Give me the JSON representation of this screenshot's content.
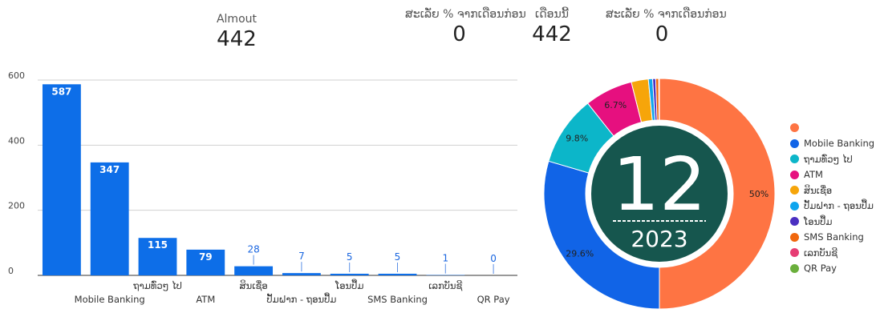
{
  "kpis": [
    {
      "label": "Almout",
      "value": "442"
    },
    {
      "label": "ສະເລັ່ຍ % ຈາກເດືອນກ່ອນ",
      "value": "0"
    },
    {
      "label": "ເດືອນນີ້",
      "value": "442"
    },
    {
      "label": "ສະເລັ່ຍ % ຈາກເດືອນກ່ອນ",
      "value": "0"
    }
  ],
  "chart_data": [
    {
      "type": "bar",
      "categories": [
        "",
        "Mobile Banking",
        "ຖາມທົ່ວໆ ໄປ",
        "ATM",
        "ສິນເຊື່ອ",
        "ປັ້ມຝາກ - ຖອນປຶ້ມ",
        "ໂອນປຶ້ມ",
        "SMS Banking",
        "ເລກບັນຊີ",
        "QR Pay"
      ],
      "values": [
        587,
        347,
        115,
        79,
        28,
        7,
        5,
        5,
        1,
        0
      ],
      "ylim": [
        0,
        600
      ],
      "yticks": [
        0,
        200,
        400,
        600
      ],
      "grid": true,
      "bar_color": "#0d6ee8"
    },
    {
      "type": "pie",
      "donut": true,
      "center_label": "12",
      "center_sublabel": "2023",
      "categories": [
        "",
        "Mobile Banking",
        "ຖາມທົ່ວໆ ໄປ",
        "ATM",
        "ສິນເຊື່ອ",
        "ປັ້ມຝາກ - ຖອນປຶ້ມ",
        "ໂອນປຶ້ມ",
        "SMS Banking",
        "ເລກບັນຊີ",
        "QR Pay"
      ],
      "values": [
        587,
        347,
        115,
        79,
        28,
        7,
        5,
        5,
        1,
        0
      ],
      "slice_labels": [
        "50%",
        "29.6%",
        "9.8%",
        "6.7%",
        "",
        "",
        "",
        "",
        "",
        ""
      ],
      "colors": [
        "#fe7443",
        "#1164e7",
        "#0cb6c9",
        "#e6107f",
        "#f6a50a",
        "#0ea5ee",
        "#4a2fc1",
        "#f0660c",
        "#e63c73",
        "#6aaf3c"
      ],
      "center_color": "#16564e",
      "legend_position": "right"
    }
  ]
}
